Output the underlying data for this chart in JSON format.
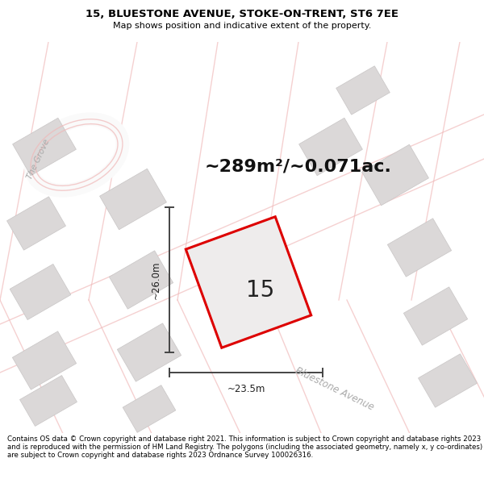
{
  "title_line1": "15, BLUESTONE AVENUE, STOKE-ON-TRENT, ST6 7EE",
  "title_line2": "Map shows position and indicative extent of the property.",
  "area_text": "~289m²/~0.071ac.",
  "plot_number": "15",
  "dim_height": "~26.0m",
  "dim_width": "~23.5m",
  "street_label": "Bluestone Avenue",
  "grove_label": "The Grove",
  "footer_text": "Contains OS data © Crown copyright and database right 2021. This information is subject to Crown copyright and database rights 2023 and is reproduced with the permission of HM Land Registry. The polygons (including the associated geometry, namely x, y co-ordinates) are subject to Crown copyright and database rights 2023 Ordnance Survey 100026316.",
  "bg_color": "#f2f0f0",
  "map_bg": "#f2f0f0",
  "building_color": "#dbd8d8",
  "building_edge": "#c8c5c5",
  "plot_outline_color": "#dd0000",
  "plot_fill_color": "#eeecec",
  "dim_line_color": "#444444",
  "title_region_color": "#ffffff",
  "footer_region_color": "#ffffff",
  "pink_road_color": "#f0b8b8",
  "white_road_color": "#fafafa"
}
